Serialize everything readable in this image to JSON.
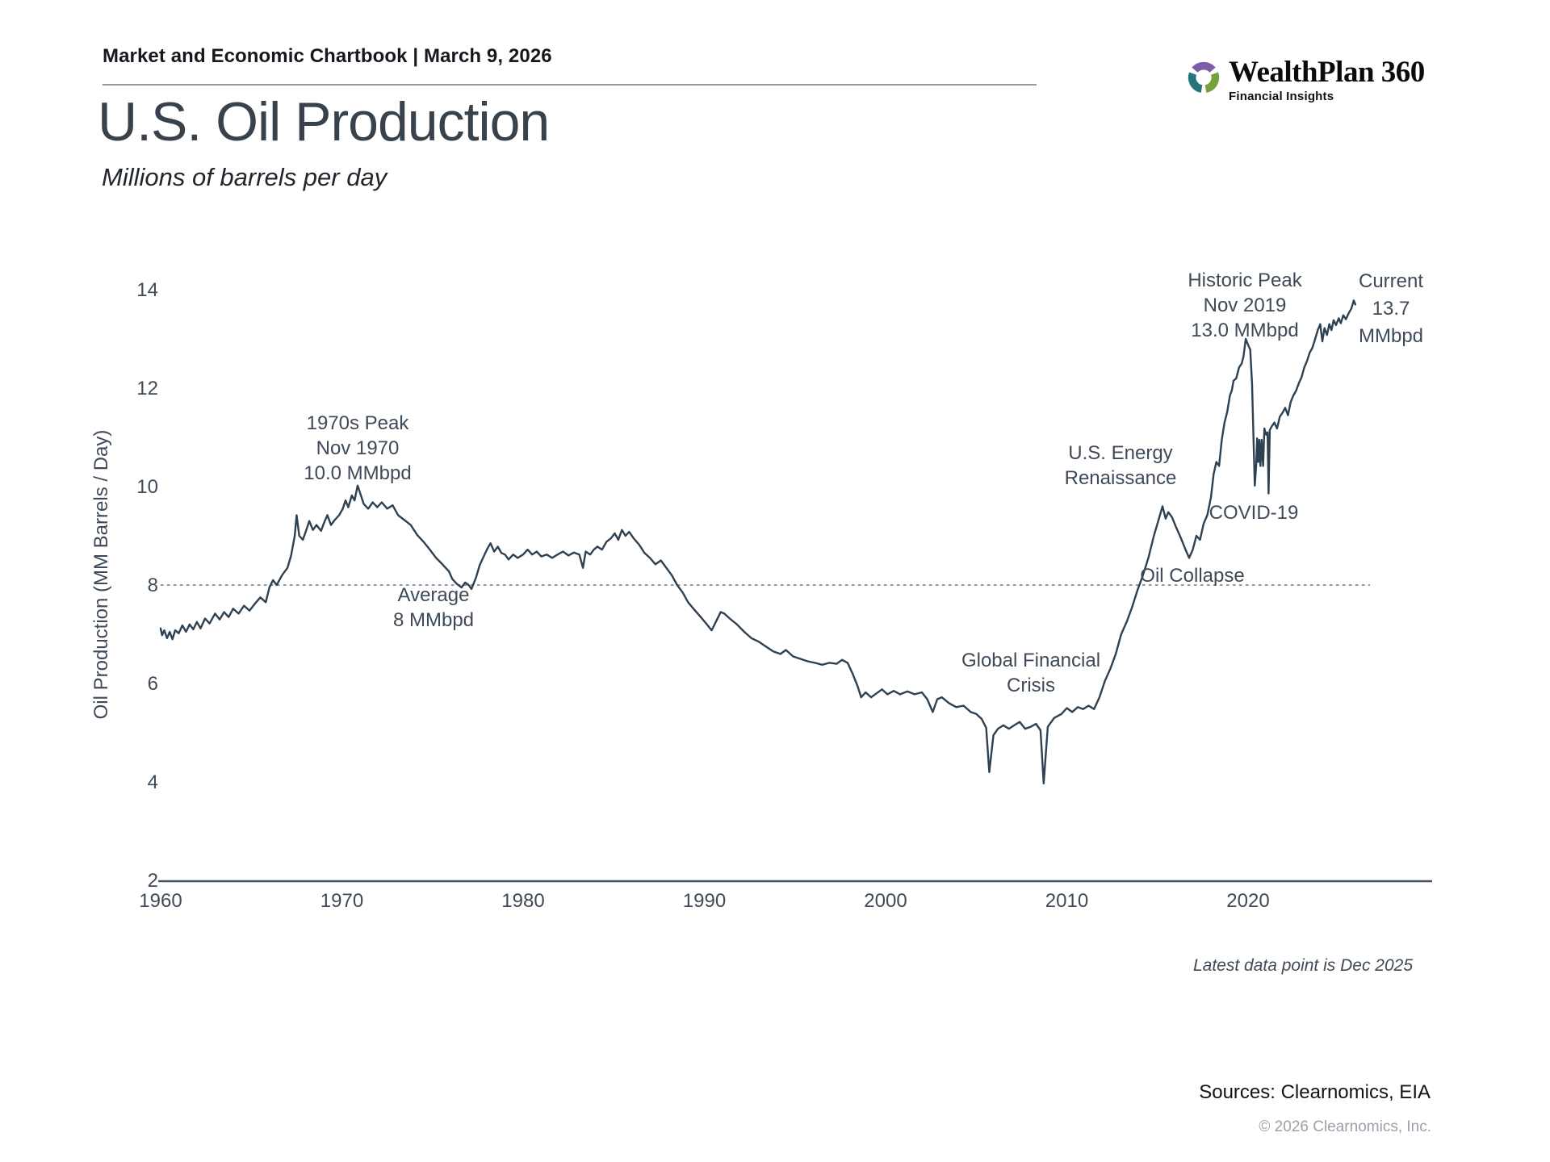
{
  "header": {
    "chartbook_label": "Market and Economic Chartbook | March 9, 2026"
  },
  "logo": {
    "brand": "WealthPlan 360",
    "tagline": "Financial Insights",
    "mark_colors": {
      "purple": "#7d5ca8",
      "green": "#76a13f",
      "teal": "#27737b"
    }
  },
  "title": "U.S. Oil Production",
  "subtitle": "Millions of barrels per day",
  "footer": {
    "latest_note": "Latest data point is Dec 2025",
    "sources": "Sources: Clearnomics, EIA",
    "copyright": "© 2026 Clearnomics, Inc."
  },
  "chart_data": {
    "type": "line",
    "title": "U.S. Oil Production",
    "ylabel": "Oil Production (MM Barrels / Day)",
    "xlabel": "",
    "xlim": [
      1960,
      2030
    ],
    "ylim": [
      2,
      14
    ],
    "grid": false,
    "x_ticks": [
      1960,
      1970,
      1980,
      1990,
      2000,
      2010,
      2020
    ],
    "y_ticks": [
      2,
      4,
      6,
      8,
      10,
      12,
      14
    ],
    "line_color": "#2d4152",
    "axis_color": "#44525f",
    "reference_line": {
      "value": 8,
      "color": "#8d99a4",
      "style": "dashed"
    },
    "annotations": [
      {
        "id": "peak1970",
        "text": "1970s Peak\nNov 1970\n10.0 MMbpd"
      },
      {
        "id": "average",
        "text": "Average\n8 MMbpd"
      },
      {
        "id": "gfc",
        "text": "Global Financial\nCrisis"
      },
      {
        "id": "renaissance",
        "text": "U.S. Energy\nRenaissance"
      },
      {
        "id": "oil_collapse",
        "text": "Oil Collapse"
      },
      {
        "id": "covid",
        "text": "COVID-19"
      },
      {
        "id": "historic_peak",
        "text": "Historic Peak\nNov 2019\n13.0 MMbpd"
      },
      {
        "id": "current",
        "text": "Current\n13.7\nMMbpd"
      }
    ],
    "series": [
      {
        "name": "U.S. oil production (MM barrels / day)",
        "points": [
          [
            1960.0,
            7.12
          ],
          [
            1960.08,
            6.98
          ],
          [
            1960.2,
            7.08
          ],
          [
            1960.35,
            6.92
          ],
          [
            1960.5,
            7.05
          ],
          [
            1960.65,
            6.9
          ],
          [
            1960.8,
            7.08
          ],
          [
            1961.0,
            7.02
          ],
          [
            1961.2,
            7.18
          ],
          [
            1961.4,
            7.05
          ],
          [
            1961.6,
            7.2
          ],
          [
            1961.8,
            7.1
          ],
          [
            1962.0,
            7.25
          ],
          [
            1962.2,
            7.12
          ],
          [
            1962.45,
            7.32
          ],
          [
            1962.7,
            7.22
          ],
          [
            1963.0,
            7.42
          ],
          [
            1963.25,
            7.3
          ],
          [
            1963.5,
            7.45
          ],
          [
            1963.75,
            7.35
          ],
          [
            1964.0,
            7.52
          ],
          [
            1964.3,
            7.42
          ],
          [
            1964.6,
            7.58
          ],
          [
            1964.9,
            7.48
          ],
          [
            1965.2,
            7.62
          ],
          [
            1965.5,
            7.75
          ],
          [
            1965.8,
            7.65
          ],
          [
            1966.0,
            7.95
          ],
          [
            1966.2,
            8.1
          ],
          [
            1966.4,
            8.0
          ],
          [
            1966.7,
            8.2
          ],
          [
            1967.0,
            8.35
          ],
          [
            1967.2,
            8.6
          ],
          [
            1967.4,
            9.0
          ],
          [
            1967.5,
            9.42
          ],
          [
            1967.65,
            9.0
          ],
          [
            1967.85,
            8.92
          ],
          [
            1968.0,
            9.08
          ],
          [
            1968.2,
            9.3
          ],
          [
            1968.4,
            9.12
          ],
          [
            1968.6,
            9.22
          ],
          [
            1968.85,
            9.1
          ],
          [
            1969.0,
            9.25
          ],
          [
            1969.2,
            9.42
          ],
          [
            1969.4,
            9.22
          ],
          [
            1969.6,
            9.32
          ],
          [
            1969.85,
            9.42
          ],
          [
            1970.05,
            9.55
          ],
          [
            1970.2,
            9.72
          ],
          [
            1970.35,
            9.58
          ],
          [
            1970.55,
            9.82
          ],
          [
            1970.7,
            9.72
          ],
          [
            1970.87,
            10.02
          ],
          [
            1971.05,
            9.82
          ],
          [
            1971.2,
            9.65
          ],
          [
            1971.45,
            9.55
          ],
          [
            1971.7,
            9.68
          ],
          [
            1971.95,
            9.58
          ],
          [
            1972.2,
            9.68
          ],
          [
            1972.5,
            9.55
          ],
          [
            1972.8,
            9.62
          ],
          [
            1973.1,
            9.42
          ],
          [
            1973.45,
            9.32
          ],
          [
            1973.8,
            9.22
          ],
          [
            1974.15,
            9.02
          ],
          [
            1974.5,
            8.88
          ],
          [
            1974.85,
            8.72
          ],
          [
            1975.2,
            8.55
          ],
          [
            1975.55,
            8.42
          ],
          [
            1975.9,
            8.28
          ],
          [
            1976.1,
            8.12
          ],
          [
            1976.35,
            8.02
          ],
          [
            1976.6,
            7.95
          ],
          [
            1976.8,
            8.05
          ],
          [
            1977.0,
            8.0
          ],
          [
            1977.15,
            7.92
          ],
          [
            1977.4,
            8.15
          ],
          [
            1977.6,
            8.4
          ],
          [
            1977.85,
            8.6
          ],
          [
            1978.0,
            8.72
          ],
          [
            1978.2,
            8.85
          ],
          [
            1978.4,
            8.68
          ],
          [
            1978.6,
            8.78
          ],
          [
            1978.8,
            8.65
          ],
          [
            1979.0,
            8.62
          ],
          [
            1979.2,
            8.52
          ],
          [
            1979.45,
            8.62
          ],
          [
            1979.7,
            8.55
          ],
          [
            1980.0,
            8.62
          ],
          [
            1980.25,
            8.72
          ],
          [
            1980.5,
            8.62
          ],
          [
            1980.75,
            8.68
          ],
          [
            1981.0,
            8.58
          ],
          [
            1981.3,
            8.62
          ],
          [
            1981.6,
            8.55
          ],
          [
            1981.9,
            8.62
          ],
          [
            1982.2,
            8.68
          ],
          [
            1982.5,
            8.6
          ],
          [
            1982.8,
            8.66
          ],
          [
            1983.1,
            8.62
          ],
          [
            1983.3,
            8.35
          ],
          [
            1983.45,
            8.68
          ],
          [
            1983.7,
            8.62
          ],
          [
            1983.9,
            8.72
          ],
          [
            1984.1,
            8.78
          ],
          [
            1984.35,
            8.72
          ],
          [
            1984.6,
            8.88
          ],
          [
            1984.85,
            8.95
          ],
          [
            1985.05,
            9.05
          ],
          [
            1985.25,
            8.92
          ],
          [
            1985.45,
            9.12
          ],
          [
            1985.65,
            9.0
          ],
          [
            1985.85,
            9.08
          ],
          [
            1986.1,
            8.95
          ],
          [
            1986.4,
            8.82
          ],
          [
            1986.7,
            8.65
          ],
          [
            1987.0,
            8.55
          ],
          [
            1987.3,
            8.42
          ],
          [
            1987.6,
            8.5
          ],
          [
            1987.9,
            8.35
          ],
          [
            1988.2,
            8.2
          ],
          [
            1988.5,
            8.0
          ],
          [
            1988.8,
            7.85
          ],
          [
            1989.1,
            7.65
          ],
          [
            1989.4,
            7.52
          ],
          [
            1989.8,
            7.35
          ],
          [
            1990.1,
            7.22
          ],
          [
            1990.4,
            7.08
          ],
          [
            1990.7,
            7.3
          ],
          [
            1990.9,
            7.45
          ],
          [
            1991.1,
            7.42
          ],
          [
            1991.4,
            7.32
          ],
          [
            1991.8,
            7.2
          ],
          [
            1992.2,
            7.05
          ],
          [
            1992.6,
            6.92
          ],
          [
            1993.0,
            6.85
          ],
          [
            1993.4,
            6.75
          ],
          [
            1993.8,
            6.65
          ],
          [
            1994.2,
            6.6
          ],
          [
            1994.5,
            6.68
          ],
          [
            1994.9,
            6.55
          ],
          [
            1995.3,
            6.5
          ],
          [
            1995.7,
            6.45
          ],
          [
            1996.1,
            6.42
          ],
          [
            1996.5,
            6.38
          ],
          [
            1996.9,
            6.42
          ],
          [
            1997.3,
            6.4
          ],
          [
            1997.6,
            6.48
          ],
          [
            1997.9,
            6.42
          ],
          [
            1998.2,
            6.18
          ],
          [
            1998.45,
            5.95
          ],
          [
            1998.65,
            5.72
          ],
          [
            1998.9,
            5.82
          ],
          [
            1999.2,
            5.72
          ],
          [
            1999.5,
            5.8
          ],
          [
            1999.8,
            5.88
          ],
          [
            2000.1,
            5.78
          ],
          [
            2000.45,
            5.85
          ],
          [
            2000.8,
            5.78
          ],
          [
            2001.2,
            5.84
          ],
          [
            2001.6,
            5.78
          ],
          [
            2002.0,
            5.82
          ],
          [
            2002.3,
            5.68
          ],
          [
            2002.6,
            5.42
          ],
          [
            2002.85,
            5.68
          ],
          [
            2003.1,
            5.72
          ],
          [
            2003.5,
            5.6
          ],
          [
            2003.9,
            5.52
          ],
          [
            2004.3,
            5.55
          ],
          [
            2004.7,
            5.42
          ],
          [
            2005.0,
            5.38
          ],
          [
            2005.3,
            5.28
          ],
          [
            2005.55,
            5.1
          ],
          [
            2005.72,
            4.2
          ],
          [
            2005.95,
            4.95
          ],
          [
            2006.2,
            5.08
          ],
          [
            2006.5,
            5.15
          ],
          [
            2006.8,
            5.08
          ],
          [
            2007.1,
            5.15
          ],
          [
            2007.4,
            5.22
          ],
          [
            2007.7,
            5.08
          ],
          [
            2008.0,
            5.12
          ],
          [
            2008.3,
            5.18
          ],
          [
            2008.55,
            5.05
          ],
          [
            2008.72,
            3.97
          ],
          [
            2008.95,
            5.12
          ],
          [
            2009.3,
            5.3
          ],
          [
            2009.7,
            5.38
          ],
          [
            2010.0,
            5.5
          ],
          [
            2010.3,
            5.42
          ],
          [
            2010.6,
            5.52
          ],
          [
            2010.9,
            5.48
          ],
          [
            2011.2,
            5.55
          ],
          [
            2011.5,
            5.48
          ],
          [
            2011.8,
            5.72
          ],
          [
            2012.1,
            6.05
          ],
          [
            2012.4,
            6.3
          ],
          [
            2012.7,
            6.6
          ],
          [
            2013.0,
            7.0
          ],
          [
            2013.3,
            7.25
          ],
          [
            2013.6,
            7.55
          ],
          [
            2013.9,
            7.9
          ],
          [
            2014.2,
            8.2
          ],
          [
            2014.5,
            8.55
          ],
          [
            2014.8,
            9.0
          ],
          [
            2015.0,
            9.25
          ],
          [
            2015.28,
            9.6
          ],
          [
            2015.45,
            9.35
          ],
          [
            2015.6,
            9.48
          ],
          [
            2015.8,
            9.38
          ],
          [
            2016.0,
            9.2
          ],
          [
            2016.3,
            8.95
          ],
          [
            2016.55,
            8.72
          ],
          [
            2016.75,
            8.55
          ],
          [
            2016.95,
            8.72
          ],
          [
            2017.15,
            9.0
          ],
          [
            2017.35,
            8.92
          ],
          [
            2017.55,
            9.25
          ],
          [
            2017.75,
            9.42
          ],
          [
            2017.95,
            9.78
          ],
          [
            2018.1,
            10.25
          ],
          [
            2018.25,
            10.5
          ],
          [
            2018.4,
            10.42
          ],
          [
            2018.55,
            10.95
          ],
          [
            2018.7,
            11.3
          ],
          [
            2018.85,
            11.52
          ],
          [
            2019.0,
            11.85
          ],
          [
            2019.1,
            11.95
          ],
          [
            2019.2,
            12.15
          ],
          [
            2019.35,
            12.2
          ],
          [
            2019.5,
            12.42
          ],
          [
            2019.65,
            12.5
          ],
          [
            2019.75,
            12.65
          ],
          [
            2019.87,
            13.0
          ],
          [
            2020.0,
            12.88
          ],
          [
            2020.12,
            12.78
          ],
          [
            2020.22,
            12.1
          ],
          [
            2020.37,
            10.02
          ],
          [
            2020.45,
            10.45
          ],
          [
            2020.5,
            10.98
          ],
          [
            2020.56,
            10.5
          ],
          [
            2020.62,
            10.95
          ],
          [
            2020.68,
            10.42
          ],
          [
            2020.75,
            10.95
          ],
          [
            2020.83,
            10.42
          ],
          [
            2020.9,
            11.18
          ],
          [
            2021.0,
            11.05
          ],
          [
            2021.08,
            11.1
          ],
          [
            2021.13,
            9.86
          ],
          [
            2021.2,
            11.15
          ],
          [
            2021.3,
            11.22
          ],
          [
            2021.45,
            11.3
          ],
          [
            2021.6,
            11.18
          ],
          [
            2021.75,
            11.42
          ],
          [
            2021.9,
            11.5
          ],
          [
            2022.05,
            11.6
          ],
          [
            2022.2,
            11.45
          ],
          [
            2022.35,
            11.72
          ],
          [
            2022.5,
            11.85
          ],
          [
            2022.65,
            11.95
          ],
          [
            2022.8,
            12.1
          ],
          [
            2022.95,
            12.22
          ],
          [
            2023.1,
            12.42
          ],
          [
            2023.25,
            12.55
          ],
          [
            2023.4,
            12.72
          ],
          [
            2023.55,
            12.82
          ],
          [
            2023.7,
            13.0
          ],
          [
            2023.85,
            13.18
          ],
          [
            2023.98,
            13.3
          ],
          [
            2024.1,
            12.95
          ],
          [
            2024.22,
            13.22
          ],
          [
            2024.35,
            13.08
          ],
          [
            2024.48,
            13.3
          ],
          [
            2024.6,
            13.18
          ],
          [
            2024.72,
            13.38
          ],
          [
            2024.85,
            13.28
          ],
          [
            2025.0,
            13.42
          ],
          [
            2025.12,
            13.32
          ],
          [
            2025.25,
            13.48
          ],
          [
            2025.4,
            13.4
          ],
          [
            2025.55,
            13.52
          ],
          [
            2025.7,
            13.62
          ],
          [
            2025.83,
            13.78
          ],
          [
            2025.92,
            13.7
          ]
        ]
      }
    ],
    "footnote": "Latest data point is Dec 2025"
  }
}
